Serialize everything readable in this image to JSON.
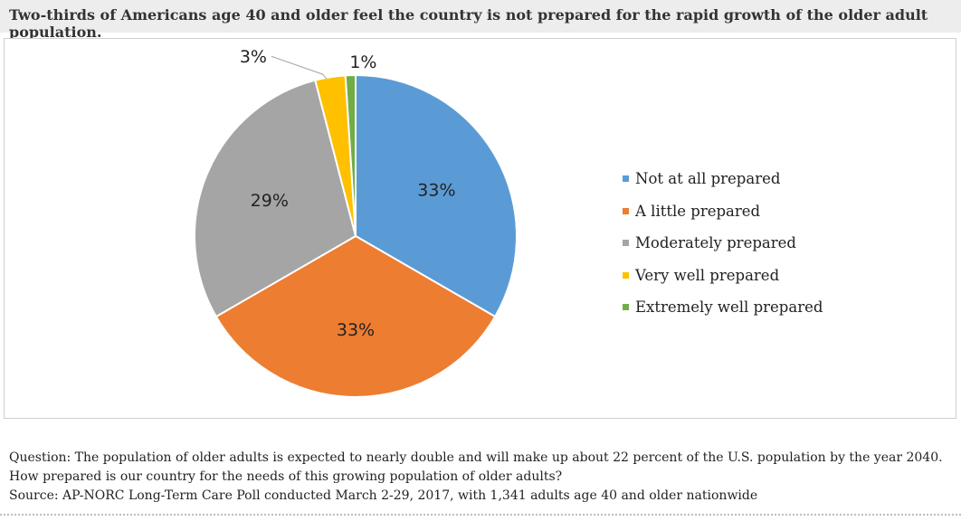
{
  "title": "Two-thirds of Americans age 40 and older feel the country is not prepared for the rapid growth of the older adult population.",
  "chart_data": {
    "type": "pie",
    "slices": [
      {
        "label": "Not at all prepared",
        "value": 33,
        "display": "33%",
        "color": "#5b9bd5"
      },
      {
        "label": "A little prepared",
        "value": 33,
        "display": "33%",
        "color": "#ed7d31"
      },
      {
        "label": "Moderately prepared",
        "value": 29,
        "display": "29%",
        "color": "#a5a5a5"
      },
      {
        "label": "Very well prepared",
        "value": 3,
        "display": "3%",
        "color": "#ffc000"
      },
      {
        "label": "Extremely well prepared",
        "value": 1,
        "display": "1%",
        "color": "#70ad47"
      }
    ],
    "legend_position": "right"
  },
  "footer": {
    "question": "Question: The population of older adults is expected to nearly double and will make up about 22 percent of the U.S. population by the year 2040. How prepared is our country for the needs of this growing population of older adults?",
    "source": "Source: AP-NORC Long-Term Care Poll conducted March 2-29, 2017, with 1,341 adults age 40 and older nationwide"
  }
}
